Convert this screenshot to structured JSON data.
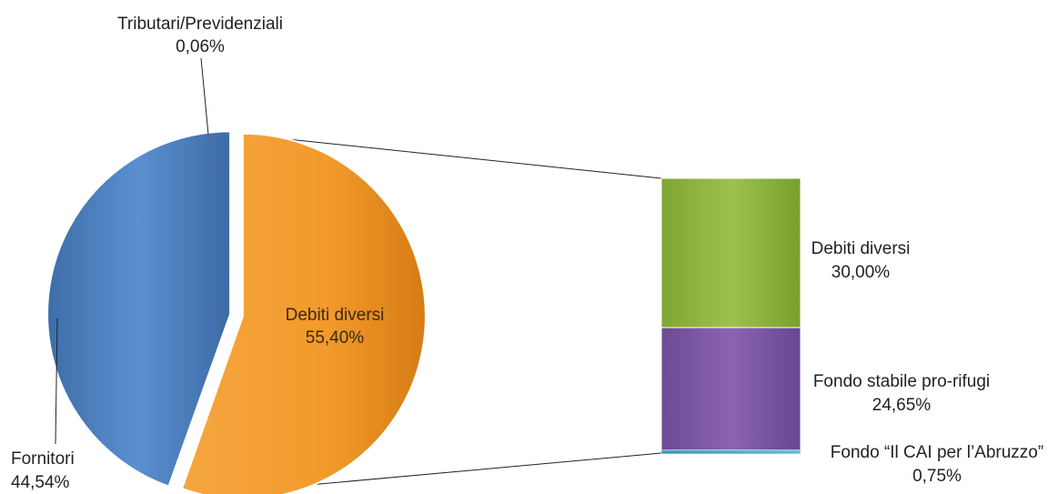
{
  "chart_data": {
    "type": "pie",
    "subtype": "pie-of-bar",
    "pie": {
      "slices": [
        {
          "label": "Debiti diversi",
          "value_text": "55,40%",
          "value": 55.4,
          "color": "#F39A2E"
        },
        {
          "label": "Tributari/Previdenziali",
          "value_text": "0,06%",
          "value": 0.06,
          "color": "#9BBB59"
        },
        {
          "label": "Fornitori",
          "value_text": "44,54%",
          "value": 44.54,
          "color": "#4A7EBB"
        }
      ]
    },
    "breakdown_bar": {
      "of_slice": "Debiti diversi",
      "segments": [
        {
          "label": "Debiti diversi",
          "value_text": "30,00%",
          "value": 30.0,
          "color": "#8DB53B"
        },
        {
          "label": "Fondo stabile pro-rifugi",
          "value_text": "24,65%",
          "value": 24.65,
          "color": "#7E58A2"
        },
        {
          "label": "Fondo “Il CAI per l’Abruzzo”",
          "value_text": "0,75%",
          "value": 0.75,
          "color": "#4BACC6"
        }
      ]
    }
  }
}
